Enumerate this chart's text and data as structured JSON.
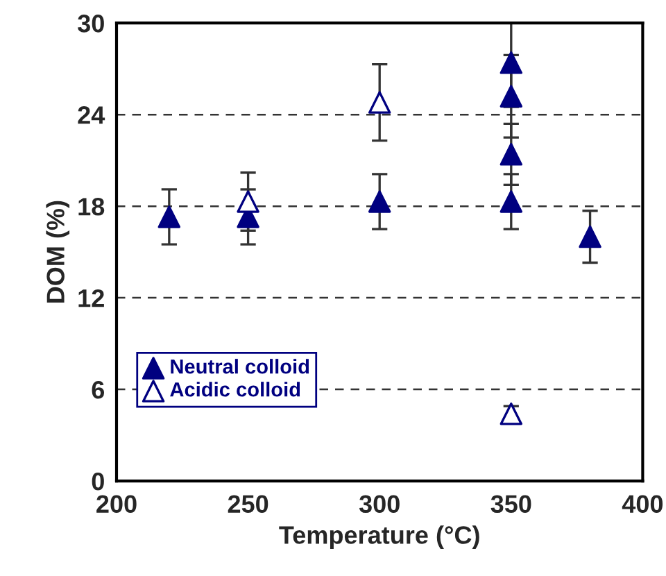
{
  "chart_data": {
    "type": "scatter",
    "xlabel": "Temperature (°C)",
    "ylabel": "DOM (%)",
    "xlim": [
      200,
      400
    ],
    "xticks": [
      200,
      250,
      300,
      350,
      400
    ],
    "ylim": [
      0,
      30
    ],
    "yticks": [
      0,
      6,
      12,
      18,
      24,
      30
    ],
    "grid": "y",
    "legend": "bottom left",
    "marker": "triangle",
    "series": [
      {
        "name": "Neutral colloid",
        "color": "#000080",
        "x": [
          220,
          250,
          300,
          350,
          350,
          350,
          350,
          380
        ],
        "values": [
          17.3,
          17.3,
          18.3,
          27.4,
          25.2,
          21.4,
          18.3,
          16.0
        ],
        "errors": [
          1.8,
          1.8,
          1.8,
          2.9,
          2.7,
          2.0,
          1.8,
          1.7
        ]
      },
      {
        "name": "Acidic colloid",
        "color": "#000080",
        "x": [
          250,
          300,
          350
        ],
        "values": [
          18.3,
          24.8,
          4.4
        ],
        "errors": [
          1.9,
          2.5,
          0.5
        ]
      }
    ]
  }
}
